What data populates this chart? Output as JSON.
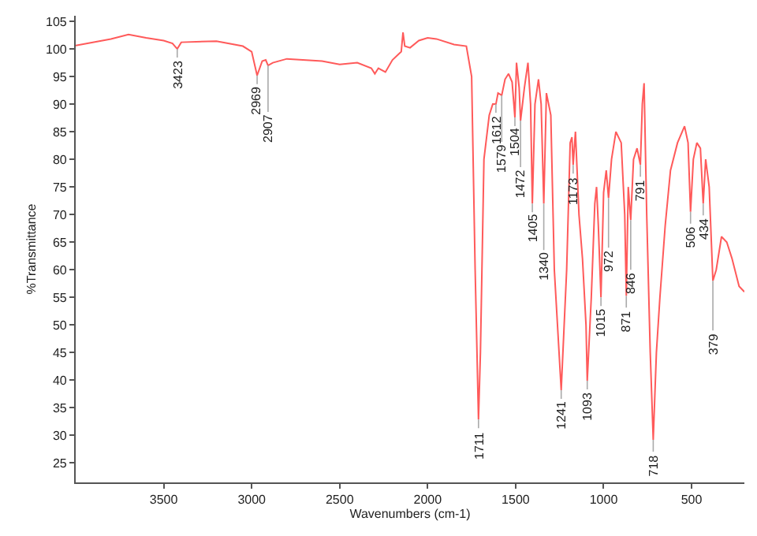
{
  "chart_data": {
    "type": "line",
    "xlabel": "Wavenumbers (cm-1)",
    "ylabel": "%Transmittance",
    "x": [
      4000,
      3800,
      3700,
      3600,
      3500,
      3450,
      3423,
      3400,
      3200,
      3050,
      3000,
      2969,
      2940,
      2920,
      2907,
      2880,
      2800,
      2600,
      2500,
      2400,
      2320,
      2300,
      2280,
      2240,
      2200,
      2150,
      2140,
      2130,
      2100,
      2050,
      2000,
      1950,
      1850,
      1780,
      1750,
      1730,
      1711,
      1700,
      1680,
      1650,
      1630,
      1612,
      1600,
      1579,
      1560,
      1540,
      1520,
      1504,
      1495,
      1480,
      1472,
      1450,
      1430,
      1415,
      1405,
      1390,
      1370,
      1355,
      1340,
      1325,
      1300,
      1280,
      1241,
      1210,
      1190,
      1180,
      1173,
      1160,
      1140,
      1120,
      1100,
      1093,
      1070,
      1050,
      1040,
      1030,
      1015,
      1000,
      985,
      972,
      955,
      930,
      900,
      880,
      871,
      860,
      846,
      830,
      810,
      791,
      780,
      770,
      755,
      735,
      718,
      700,
      680,
      650,
      620,
      580,
      540,
      520,
      506,
      490,
      470,
      450,
      434,
      420,
      400,
      379,
      360,
      330,
      300,
      270,
      230,
      200
    ],
    "series": [
      {
        "color": "#ff5a5a",
        "values": [
          100.6,
          101.8,
          102.6,
          102.0,
          101.5,
          101.0,
          100.0,
          101.2,
          101.4,
          100.5,
          99.5,
          95.2,
          97.8,
          98.0,
          97.0,
          97.5,
          98.2,
          97.8,
          97.2,
          97.5,
          96.5,
          95.5,
          96.5,
          95.8,
          98.0,
          99.5,
          103.0,
          100.5,
          100.2,
          101.5,
          102.0,
          101.8,
          100.8,
          100.5,
          95,
          60,
          32.9,
          45,
          80,
          88,
          90,
          90,
          92,
          91.6,
          94.5,
          95.5,
          94,
          87.6,
          97.5,
          93,
          87,
          93,
          97.5,
          90,
          72,
          90,
          94.5,
          90,
          72,
          92,
          88,
          60,
          38.2,
          60,
          83,
          84,
          79,
          85,
          70,
          62,
          50,
          39.9,
          55,
          72,
          75,
          68,
          55,
          74,
          78,
          73,
          80,
          85,
          83,
          70,
          55.3,
          75,
          69,
          80,
          82,
          79,
          90,
          93.8,
          70,
          45,
          29.2,
          45,
          55,
          68,
          78,
          83,
          86,
          83,
          70.5,
          80,
          83,
          82,
          72,
          80,
          75,
          58,
          60,
          66,
          65,
          62,
          57,
          56
        ]
      }
    ],
    "xlim": [
      4000,
      200
    ],
    "ylim": [
      21.5,
      106
    ],
    "xticks": [
      3500,
      3000,
      2500,
      2000,
      1500,
      1000,
      500
    ],
    "yticks": [
      25,
      30,
      35,
      40,
      45,
      50,
      55,
      60,
      65,
      70,
      75,
      80,
      85,
      90,
      95,
      100,
      105
    ],
    "grid": false,
    "marker": "none",
    "line_style": "solid",
    "annotations": [
      {
        "text": "3423",
        "x": 3423,
        "y": 100.0
      },
      {
        "text": "2969",
        "x": 2969,
        "y": 95.2
      },
      {
        "text": "2907",
        "x": 2907,
        "y": 97.0
      },
      {
        "text": "1711",
        "x": 1711,
        "y": 32.9
      },
      {
        "text": "1612",
        "x": 1612,
        "y": 90
      },
      {
        "text": "1579",
        "x": 1579,
        "y": 91.6
      },
      {
        "text": "1504",
        "x": 1504,
        "y": 87.6
      },
      {
        "text": "1472",
        "x": 1472,
        "y": 87
      },
      {
        "text": "1405",
        "x": 1405,
        "y": 72
      },
      {
        "text": "1340",
        "x": 1340,
        "y": 72
      },
      {
        "text": "1241",
        "x": 1241,
        "y": 38.2
      },
      {
        "text": "1173",
        "x": 1173,
        "y": 79
      },
      {
        "text": "1093",
        "x": 1093,
        "y": 39.9
      },
      {
        "text": "1015",
        "x": 1015,
        "y": 55
      },
      {
        "text": "972",
        "x": 972,
        "y": 73
      },
      {
        "text": "871",
        "x": 871,
        "y": 55.3
      },
      {
        "text": "846",
        "x": 846,
        "y": 69
      },
      {
        "text": "791",
        "x": 791,
        "y": 79
      },
      {
        "text": "718",
        "x": 718,
        "y": 29.2
      },
      {
        "text": "506",
        "x": 506,
        "y": 70.5
      },
      {
        "text": "434",
        "x": 434,
        "y": 72
      },
      {
        "text": "379",
        "x": 379,
        "y": 58
      }
    ]
  }
}
